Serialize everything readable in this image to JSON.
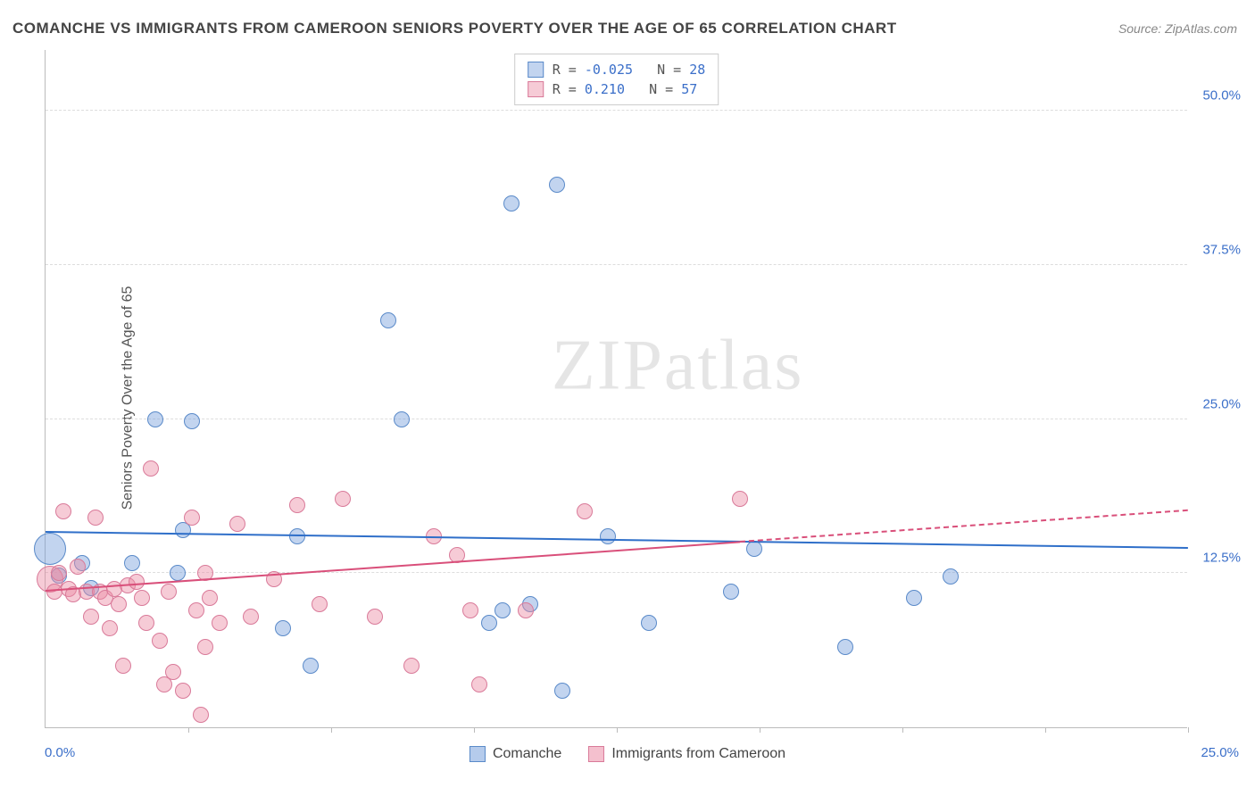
{
  "title": "COMANCHE VS IMMIGRANTS FROM CAMEROON SENIORS POVERTY OVER THE AGE OF 65 CORRELATION CHART",
  "source": "Source: ZipAtlas.com",
  "y_axis_label": "Seniors Poverty Over the Age of 65",
  "watermark": "ZIPatlas",
  "chart": {
    "type": "scatter",
    "xlim": [
      0,
      25
    ],
    "ylim": [
      0,
      55
    ],
    "x_origin_label": "0.0%",
    "x_max_label": "25.0%",
    "y_ticks": [
      {
        "v": 12.5,
        "label": "12.5%"
      },
      {
        "v": 25.0,
        "label": "25.0%"
      },
      {
        "v": 37.5,
        "label": "37.5%"
      },
      {
        "v": 50.0,
        "label": "50.0%"
      }
    ],
    "x_tick_positions": [
      3.125,
      6.25,
      9.375,
      12.5,
      15.625,
      18.75,
      21.875,
      25
    ],
    "background_color": "#ffffff",
    "grid_color": "#dddddd",
    "axis_color": "#bbbbbb",
    "tick_label_color": "#3b6fc9",
    "series": [
      {
        "name": "Comanche",
        "fill": "rgba(120,160,220,0.45)",
        "stroke": "#5a8ac9",
        "marker_radius": 9,
        "R": "-0.025",
        "N": "28",
        "trend": {
          "x1": 0,
          "y1": 15.8,
          "x2": 25,
          "y2": 14.5,
          "solid_to_x": 25,
          "color": "#2f6fc9"
        },
        "points": [
          {
            "x": 0.1,
            "y": 14.5,
            "r": 18
          },
          {
            "x": 0.3,
            "y": 12.3
          },
          {
            "x": 0.8,
            "y": 13.3
          },
          {
            "x": 1.0,
            "y": 11.3
          },
          {
            "x": 1.9,
            "y": 13.3
          },
          {
            "x": 2.4,
            "y": 25.0
          },
          {
            "x": 3.2,
            "y": 24.8
          },
          {
            "x": 3.0,
            "y": 16.0
          },
          {
            "x": 2.9,
            "y": 12.5
          },
          {
            "x": 5.2,
            "y": 8.0
          },
          {
            "x": 5.5,
            "y": 15.5
          },
          {
            "x": 5.8,
            "y": 5.0
          },
          {
            "x": 7.5,
            "y": 33.0
          },
          {
            "x": 7.8,
            "y": 25.0
          },
          {
            "x": 9.7,
            "y": 8.5
          },
          {
            "x": 10.0,
            "y": 9.5
          },
          {
            "x": 10.2,
            "y": 42.5
          },
          {
            "x": 10.6,
            "y": 10.0
          },
          {
            "x": 11.2,
            "y": 44.0
          },
          {
            "x": 11.3,
            "y": 3.0
          },
          {
            "x": 12.3,
            "y": 15.5
          },
          {
            "x": 13.2,
            "y": 8.5
          },
          {
            "x": 15.0,
            "y": 11.0
          },
          {
            "x": 15.5,
            "y": 14.5
          },
          {
            "x": 17.5,
            "y": 6.5
          },
          {
            "x": 19.8,
            "y": 12.2
          },
          {
            "x": 19.0,
            "y": 10.5
          }
        ]
      },
      {
        "name": "Immigrants from Cameroon",
        "fill": "rgba(235,140,165,0.45)",
        "stroke": "#d97a99",
        "marker_radius": 9,
        "R": "0.210",
        "N": "57",
        "trend": {
          "x1": 0,
          "y1": 11.0,
          "x2": 25,
          "y2": 17.5,
          "solid_to_x": 15.2,
          "color": "#d94f7a"
        },
        "points": [
          {
            "x": 0.1,
            "y": 12.0,
            "r": 15
          },
          {
            "x": 0.2,
            "y": 11.0
          },
          {
            "x": 0.3,
            "y": 12.5
          },
          {
            "x": 0.4,
            "y": 17.5
          },
          {
            "x": 0.5,
            "y": 11.2
          },
          {
            "x": 0.6,
            "y": 10.8
          },
          {
            "x": 0.7,
            "y": 13.0
          },
          {
            "x": 0.9,
            "y": 11.0
          },
          {
            "x": 1.0,
            "y": 9.0
          },
          {
            "x": 1.1,
            "y": 17.0
          },
          {
            "x": 1.2,
            "y": 11.0
          },
          {
            "x": 1.3,
            "y": 10.5
          },
          {
            "x": 1.4,
            "y": 8.0
          },
          {
            "x": 1.5,
            "y": 11.2
          },
          {
            "x": 1.6,
            "y": 10.0
          },
          {
            "x": 1.7,
            "y": 5.0
          },
          {
            "x": 1.8,
            "y": 11.5
          },
          {
            "x": 2.0,
            "y": 11.8
          },
          {
            "x": 2.1,
            "y": 10.5
          },
          {
            "x": 2.2,
            "y": 8.5
          },
          {
            "x": 2.3,
            "y": 21.0
          },
          {
            "x": 2.5,
            "y": 7.0
          },
          {
            "x": 2.6,
            "y": 3.5
          },
          {
            "x": 2.7,
            "y": 11.0
          },
          {
            "x": 2.8,
            "y": 4.5
          },
          {
            "x": 3.0,
            "y": 3.0
          },
          {
            "x": 3.2,
            "y": 17.0
          },
          {
            "x": 3.3,
            "y": 9.5
          },
          {
            "x": 3.4,
            "y": 1.0
          },
          {
            "x": 3.5,
            "y": 6.5
          },
          {
            "x": 3.5,
            "y": 12.5
          },
          {
            "x": 3.6,
            "y": 10.5
          },
          {
            "x": 3.8,
            "y": 8.5
          },
          {
            "x": 4.2,
            "y": 16.5
          },
          {
            "x": 4.5,
            "y": 9.0
          },
          {
            "x": 5.0,
            "y": 12.0
          },
          {
            "x": 5.5,
            "y": 18.0
          },
          {
            "x": 6.0,
            "y": 10.0
          },
          {
            "x": 6.5,
            "y": 18.5
          },
          {
            "x": 7.2,
            "y": 9.0
          },
          {
            "x": 8.0,
            "y": 5.0
          },
          {
            "x": 8.5,
            "y": 15.5
          },
          {
            "x": 9.0,
            "y": 14.0
          },
          {
            "x": 9.3,
            "y": 9.5
          },
          {
            "x": 9.5,
            "y": 3.5
          },
          {
            "x": 10.5,
            "y": 9.5
          },
          {
            "x": 11.8,
            "y": 17.5
          },
          {
            "x": 15.2,
            "y": 18.5
          }
        ]
      }
    ],
    "legend_bottom": [
      {
        "label": "Comanche",
        "fill": "rgba(120,160,220,0.55)",
        "stroke": "#5a8ac9"
      },
      {
        "label": "Immigrants from Cameroon",
        "fill": "rgba(235,140,165,0.55)",
        "stroke": "#d97a99"
      }
    ]
  }
}
